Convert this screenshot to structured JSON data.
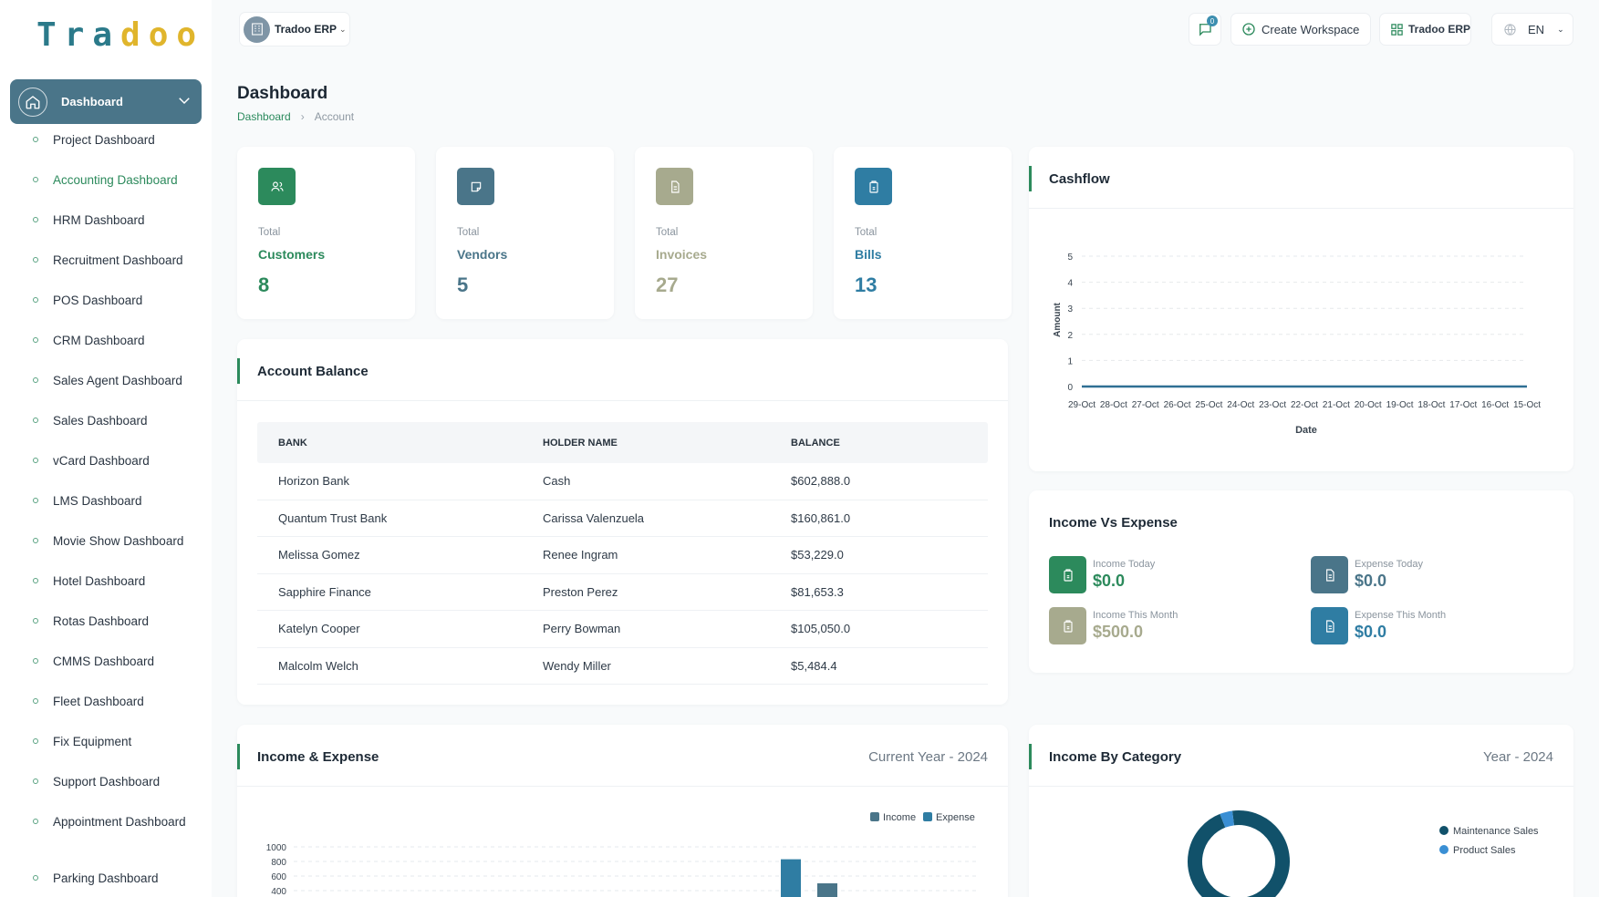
{
  "brand": {
    "logo_part1": "Tra",
    "logo_part2": "doo"
  },
  "sidebar": {
    "active_section": "Dashboard",
    "items": [
      {
        "label": "Project Dashboard"
      },
      {
        "label": "Accounting Dashboard",
        "active": true
      },
      {
        "label": "HRM Dashboard"
      },
      {
        "label": "Recruitment Dashboard"
      },
      {
        "label": "POS Dashboard"
      },
      {
        "label": "CRM Dashboard"
      },
      {
        "label": "Sales Agent Dashboard"
      },
      {
        "label": "Sales Dashboard"
      },
      {
        "label": "vCard Dashboard"
      },
      {
        "label": "LMS Dashboard"
      },
      {
        "label": "Movie Show Dashboard"
      },
      {
        "label": "Hotel Dashboard"
      },
      {
        "label": "Rotas Dashboard"
      },
      {
        "label": "CMMS Dashboard"
      },
      {
        "label": "Fleet Dashboard"
      },
      {
        "label": "Fix Equipment"
      },
      {
        "label": "Support Dashboard"
      },
      {
        "label": "Appointment Dashboard"
      },
      {
        "label": "Parking Dashboard"
      }
    ]
  },
  "topbar": {
    "workspace": "Tradoo ERP",
    "messages_count": "0",
    "create_workspace": "Create Workspace",
    "current_workspace": "Tradoo ERP",
    "language": "EN"
  },
  "page": {
    "title": "Dashboard",
    "breadcrumb": [
      "Dashboard",
      "Account"
    ]
  },
  "stats": [
    {
      "small": "Total",
      "name": "Customers",
      "value": "8",
      "color": "#2c8a5c",
      "icon_bg": "#2c8a5c",
      "icon": "users-icon"
    },
    {
      "small": "Total",
      "name": "Vendors",
      "value": "5",
      "color": "#4a7589",
      "icon_bg": "#4a7589",
      "icon": "note-icon"
    },
    {
      "small": "Total",
      "name": "Invoices",
      "value": "27",
      "color": "#a7aa8e",
      "icon_bg": "#a7aa8e",
      "icon": "file-icon"
    },
    {
      "small": "Total",
      "name": "Bills",
      "value": "13",
      "color": "#2f7da3",
      "icon_bg": "#2f7da3",
      "icon": "clipboard-icon"
    }
  ],
  "account_balance": {
    "title": "Account Balance",
    "columns": [
      "BANK",
      "HOLDER NAME",
      "BALANCE"
    ],
    "rows": [
      [
        "Horizon Bank",
        "Cash",
        "$602,888.0"
      ],
      [
        "Quantum Trust Bank",
        "Carissa Valenzuela",
        "$160,861.0"
      ],
      [
        "Melissa Gomez",
        "Renee Ingram",
        "$53,229.0"
      ],
      [
        "Sapphire Finance",
        "Preston Perez",
        "$81,653.3"
      ],
      [
        "Katelyn Cooper",
        "Perry Bowman",
        "$105,050.0"
      ],
      [
        "Malcolm Welch",
        "Wendy Miller",
        "$5,484.4"
      ]
    ]
  },
  "cashflow": {
    "title": "Cashflow"
  },
  "income_vs_expense": {
    "title": "Income Vs Expense",
    "items": [
      {
        "label": "Income Today",
        "value": "$0.0",
        "color": "#2c8a5c",
        "icon": "clipboard-icon"
      },
      {
        "label": "Expense Today",
        "value": "$0.0",
        "color": "#4a7589",
        "icon": "file-icon"
      },
      {
        "label": "Income This Month",
        "value": "$500.0",
        "color": "#a7aa8e",
        "icon": "clipboard-icon"
      },
      {
        "label": "Expense This Month",
        "value": "$0.0",
        "color": "#2f7da3",
        "icon": "file-icon"
      }
    ]
  },
  "income_expense": {
    "title": "Income & Expense",
    "period": "Current Year - 2024"
  },
  "income_by_category": {
    "title": "Income By Category",
    "period": "Year - 2024"
  },
  "chart_data": [
    {
      "type": "line",
      "title": "",
      "xlabel": "Date",
      "ylabel": "Amount",
      "x": [
        "29-Oct",
        "28-Oct",
        "27-Oct",
        "26-Oct",
        "25-Oct",
        "24-Oct",
        "23-Oct",
        "22-Oct",
        "21-Oct",
        "20-Oct",
        "19-Oct",
        "18-Oct",
        "17-Oct",
        "16-Oct",
        "15-Oct"
      ],
      "series": [
        {
          "values": [
            0,
            0,
            0,
            0,
            0,
            0,
            0,
            0,
            0,
            0,
            0,
            0,
            0,
            0,
            0
          ]
        }
      ],
      "ylim": [
        0,
        5
      ],
      "yticks": [
        "0",
        "1",
        "2",
        "3",
        "4",
        "5"
      ],
      "grid": true
    },
    {
      "type": "bar",
      "title": "",
      "yticks": [
        "1000",
        "800",
        "600",
        "400"
      ],
      "series": [
        {
          "name": "Income",
          "color": "#4a7589",
          "values": []
        },
        {
          "name": "Expense",
          "color": "#2f7da3",
          "values": []
        }
      ],
      "visible_bars": [
        {
          "series": "Expense",
          "value": 830
        },
        {
          "series": "Income",
          "value": 500
        }
      ],
      "legend": "top-right"
    },
    {
      "type": "pie",
      "title": "",
      "series": [
        {
          "name": "Maintenance Sales",
          "color": "#11516a",
          "value": 96
        },
        {
          "name": "Product Sales",
          "color": "#3a8fd4",
          "value": 4
        }
      ],
      "legend": "right"
    }
  ]
}
